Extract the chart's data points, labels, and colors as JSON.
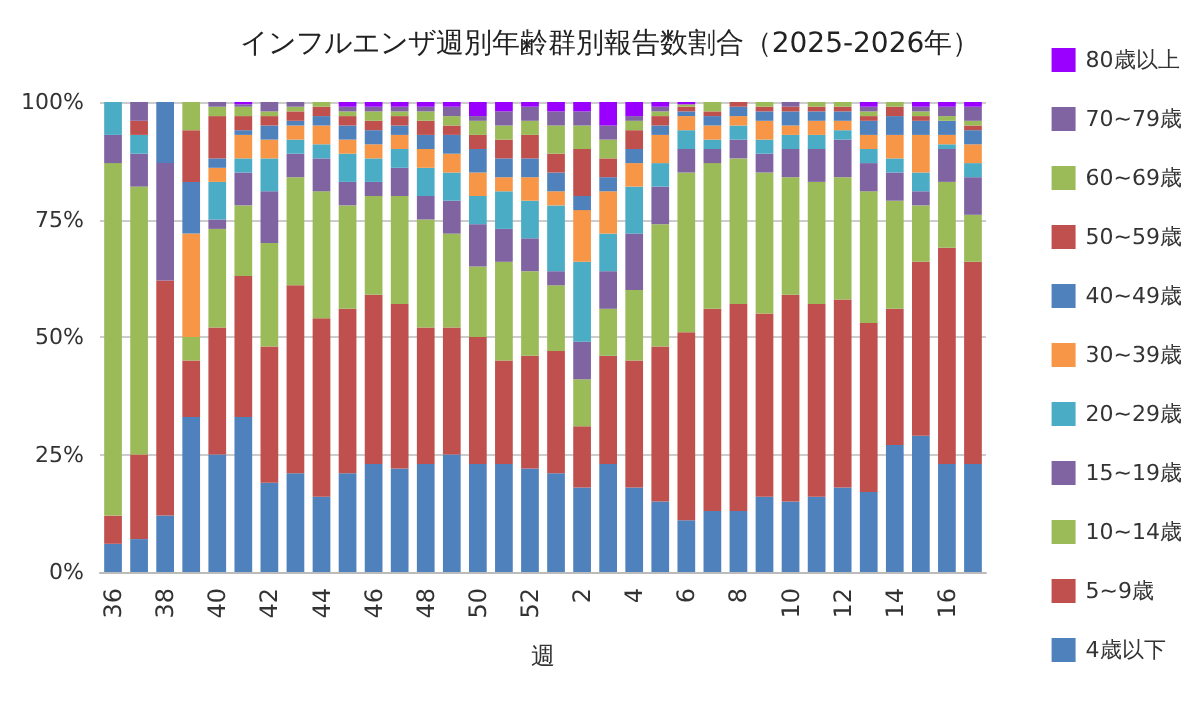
{
  "chart_data": {
    "type": "bar",
    "stacked": true,
    "title": "インフルエンザ週別年齢群別報告数割合（2025-2026年）",
    "xlabel": "週",
    "categories": [
      "36",
      null,
      "38",
      null,
      "40",
      null,
      "42",
      null,
      "44",
      null,
      "46",
      null,
      "48",
      null,
      "50",
      null,
      "52",
      null,
      "2",
      null,
      "4",
      null,
      "6",
      null,
      "8",
      null,
      "10",
      null,
      "12",
      null,
      "14",
      null,
      "16",
      null
    ],
    "series": [
      {
        "name": "4歳以下",
        "color": "#4f81bd",
        "values": [
          6,
          7,
          12,
          33,
          25,
          33,
          19,
          21,
          16,
          21,
          23,
          22,
          23,
          25,
          23,
          23,
          22,
          21,
          18,
          23,
          18,
          15,
          11,
          13,
          13,
          16,
          15,
          16,
          18,
          17,
          27,
          29,
          23,
          23
        ]
      },
      {
        "name": "5~9歳",
        "color": "#c0504d",
        "values": [
          6,
          18,
          50,
          12,
          27,
          30,
          29,
          40,
          38,
          35,
          36,
          35,
          29,
          27,
          27,
          22,
          24,
          26,
          13,
          23,
          27,
          33,
          40,
          43,
          44,
          39,
          44,
          41,
          40,
          36,
          29,
          37,
          46,
          43
        ]
      },
      {
        "name": "10~14歳",
        "color": "#9bbb59",
        "values": [
          75,
          57,
          0,
          5,
          21,
          15,
          22,
          23,
          27,
          22,
          21,
          23,
          23,
          20,
          15,
          21,
          18,
          14,
          10,
          10,
          15,
          26,
          34,
          31,
          31,
          30,
          25,
          26,
          26,
          28,
          23,
          12,
          14,
          10
        ]
      },
      {
        "name": "15~19歳",
        "color": "#8064a2",
        "values": [
          6,
          7,
          25,
          0,
          2,
          7,
          11,
          5,
          7,
          5,
          3,
          6,
          5,
          7,
          9,
          7,
          7,
          3,
          8,
          8,
          12,
          8,
          5,
          3,
          4,
          4,
          6,
          7,
          8,
          6,
          6,
          3,
          7,
          8
        ]
      },
      {
        "name": "20~29歳",
        "color": "#4bacc6",
        "values": [
          7,
          4,
          0,
          0,
          8,
          3,
          7,
          3,
          3,
          6,
          5,
          4,
          6,
          6,
          6,
          8,
          8,
          14,
          17,
          8,
          10,
          5,
          4,
          2,
          3,
          3,
          3,
          3,
          2,
          3,
          3,
          4,
          1,
          3
        ]
      },
      {
        "name": "30~39歳",
        "color": "#f79646",
        "values": [
          0,
          0,
          0,
          22,
          3,
          5,
          4,
          3,
          4,
          3,
          3,
          3,
          4,
          4,
          5,
          3,
          5,
          3,
          11,
          9,
          5,
          6,
          3,
          3,
          2,
          4,
          2,
          3,
          2,
          3,
          5,
          8,
          2,
          4
        ]
      },
      {
        "name": "40~49歳",
        "color": "#4f81bd",
        "values": [
          0,
          0,
          13,
          11,
          2,
          1,
          3,
          1,
          2,
          3,
          3,
          2,
          3,
          4,
          5,
          4,
          4,
          4,
          3,
          3,
          3,
          2,
          1,
          2,
          2,
          2,
          3,
          2,
          2,
          3,
          4,
          3,
          3,
          3
        ]
      },
      {
        "name": "50~59歳",
        "color": "#c0504d",
        "values": [
          0,
          3,
          0,
          11,
          9,
          3,
          2,
          2,
          2,
          2,
          2,
          2,
          3,
          2,
          3,
          4,
          5,
          4,
          10,
          4,
          4,
          2,
          1,
          1,
          1,
          1,
          1,
          1,
          1,
          1,
          2,
          1,
          0,
          1
        ]
      },
      {
        "name": "60~69歳",
        "color": "#9bbb59",
        "values": [
          0,
          0,
          0,
          6,
          2,
          2,
          1,
          1,
          1,
          1,
          2,
          1,
          2,
          2,
          3,
          3,
          3,
          6,
          5,
          4,
          2,
          1,
          0.5,
          2,
          0,
          1,
          0,
          1,
          1,
          1,
          1,
          1,
          1,
          1
        ]
      },
      {
        "name": "70~79歳",
        "color": "#8064a2",
        "values": [
          0,
          4,
          0,
          0,
          1,
          0.5,
          2,
          1,
          0,
          1,
          1,
          1,
          1,
          2,
          1,
          3,
          3,
          3,
          3,
          3,
          1,
          1,
          0,
          0,
          0,
          0,
          1,
          0,
          0,
          1,
          0,
          1,
          2,
          3
        ]
      },
      {
        "name": "80歳以上",
        "color": "#9900ff",
        "values": [
          0,
          0,
          0,
          0,
          0,
          0.5,
          0,
          0,
          0,
          1,
          1,
          1,
          1,
          1,
          3,
          2,
          1,
          2,
          2,
          5,
          3,
          1,
          0.5,
          0,
          0,
          0,
          0,
          0,
          0,
          1,
          0,
          1,
          1,
          1
        ]
      }
    ],
    "ylim": [
      0,
      100
    ],
    "yticks": [
      {
        "value": 0,
        "label": "0%"
      },
      {
        "value": 25,
        "label": "25%"
      },
      {
        "value": 50,
        "label": "50%"
      },
      {
        "value": 75,
        "label": "75%"
      },
      {
        "value": 100,
        "label": "100%"
      }
    ],
    "grid": "y",
    "legend": "right"
  }
}
